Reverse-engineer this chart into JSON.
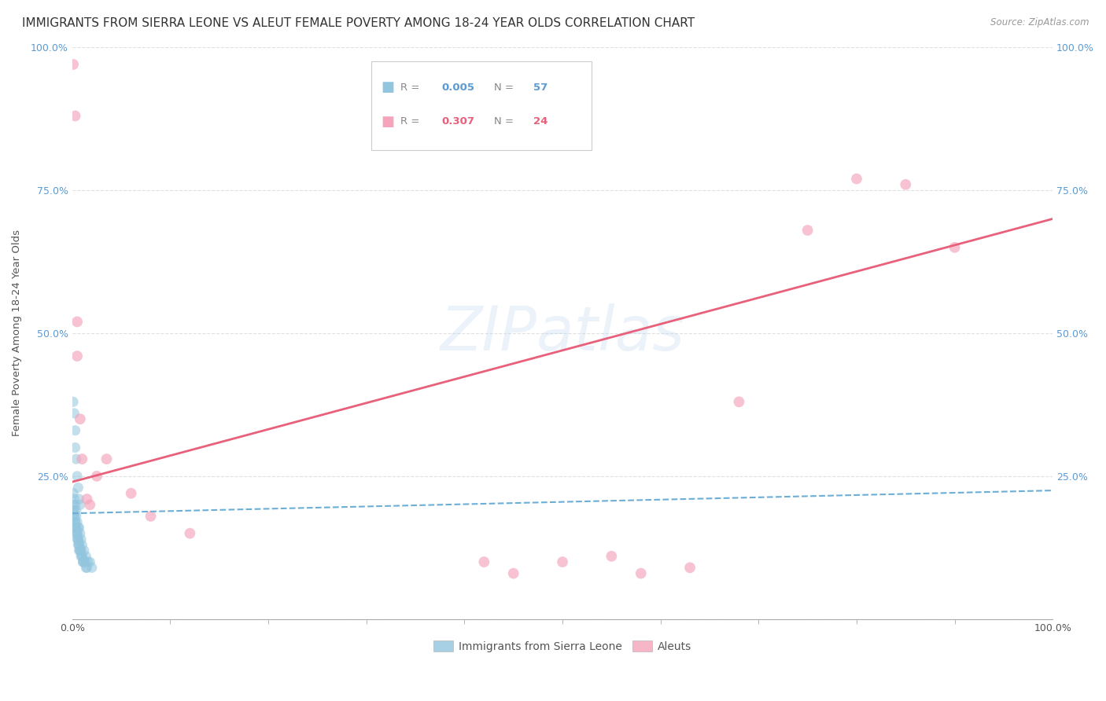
{
  "title": "IMMIGRANTS FROM SIERRA LEONE VS ALEUT FEMALE POVERTY AMONG 18-24 YEAR OLDS CORRELATION CHART",
  "source": "Source: ZipAtlas.com",
  "ylabel": "Female Poverty Among 18-24 Year Olds",
  "legend_label_1": "Immigrants from Sierra Leone",
  "legend_label_2": "Aleuts",
  "r1": "0.005",
  "n1": "57",
  "r2": "0.307",
  "n2": "24",
  "color1": "#92C5DE",
  "color2": "#F4A4BB",
  "trendline1_color": "#6BAED6",
  "trendline2_color": "#E8607A",
  "watermark": "ZIPatlas",
  "blue_points_x": [
    0.001,
    0.001,
    0.002,
    0.002,
    0.002,
    0.003,
    0.003,
    0.003,
    0.003,
    0.004,
    0.004,
    0.005,
    0.005,
    0.005,
    0.006,
    0.006,
    0.006,
    0.007,
    0.007,
    0.007,
    0.008,
    0.008,
    0.009,
    0.009,
    0.01,
    0.01,
    0.011,
    0.011,
    0.012,
    0.013,
    0.014,
    0.015,
    0.001,
    0.002,
    0.003,
    0.004,
    0.004,
    0.005,
    0.006,
    0.007,
    0.008,
    0.009,
    0.01,
    0.012,
    0.014,
    0.016,
    0.018,
    0.02,
    0.001,
    0.002,
    0.003,
    0.003,
    0.004,
    0.005,
    0.006,
    0.007,
    0.008
  ],
  "blue_points_y": [
    0.2,
    0.19,
    0.19,
    0.18,
    0.18,
    0.17,
    0.17,
    0.16,
    0.16,
    0.16,
    0.15,
    0.15,
    0.15,
    0.14,
    0.14,
    0.14,
    0.13,
    0.13,
    0.13,
    0.12,
    0.12,
    0.12,
    0.12,
    0.11,
    0.11,
    0.11,
    0.1,
    0.1,
    0.1,
    0.1,
    0.09,
    0.09,
    0.22,
    0.21,
    0.2,
    0.19,
    0.18,
    0.17,
    0.16,
    0.16,
    0.15,
    0.14,
    0.13,
    0.12,
    0.11,
    0.1,
    0.1,
    0.09,
    0.38,
    0.36,
    0.33,
    0.3,
    0.28,
    0.25,
    0.23,
    0.21,
    0.2
  ],
  "pink_points_x": [
    0.001,
    0.003,
    0.005,
    0.005,
    0.008,
    0.01,
    0.015,
    0.018,
    0.025,
    0.035,
    0.06,
    0.08,
    0.12,
    0.42,
    0.45,
    0.5,
    0.55,
    0.58,
    0.63,
    0.68,
    0.75,
    0.8,
    0.85,
    0.9
  ],
  "pink_points_y": [
    0.97,
    0.88,
    0.52,
    0.46,
    0.35,
    0.28,
    0.21,
    0.2,
    0.25,
    0.28,
    0.22,
    0.18,
    0.15,
    0.1,
    0.08,
    0.1,
    0.11,
    0.08,
    0.09,
    0.38,
    0.68,
    0.77,
    0.76,
    0.65
  ],
  "xlim": [
    0.0,
    1.0
  ],
  "ylim": [
    0.0,
    1.0
  ],
  "xtick_minor_positions": [
    0.1,
    0.2,
    0.3,
    0.4,
    0.5,
    0.6,
    0.7,
    0.8,
    0.9
  ],
  "ytick_positions": [
    0.0,
    0.25,
    0.5,
    0.75,
    1.0
  ],
  "ytick_labels": [
    "",
    "25.0%",
    "50.0%",
    "75.0%",
    "100.0%"
  ],
  "grid_color": "#DDDDDD",
  "background_color": "#FFFFFF",
  "title_fontsize": 11,
  "axis_fontsize": 9.5,
  "tick_fontsize": 9,
  "marker_size": 90,
  "trendline1_intercept": 0.185,
  "trendline1_slope": 0.04,
  "trendline2_intercept": 0.24,
  "trendline2_slope": 0.46
}
